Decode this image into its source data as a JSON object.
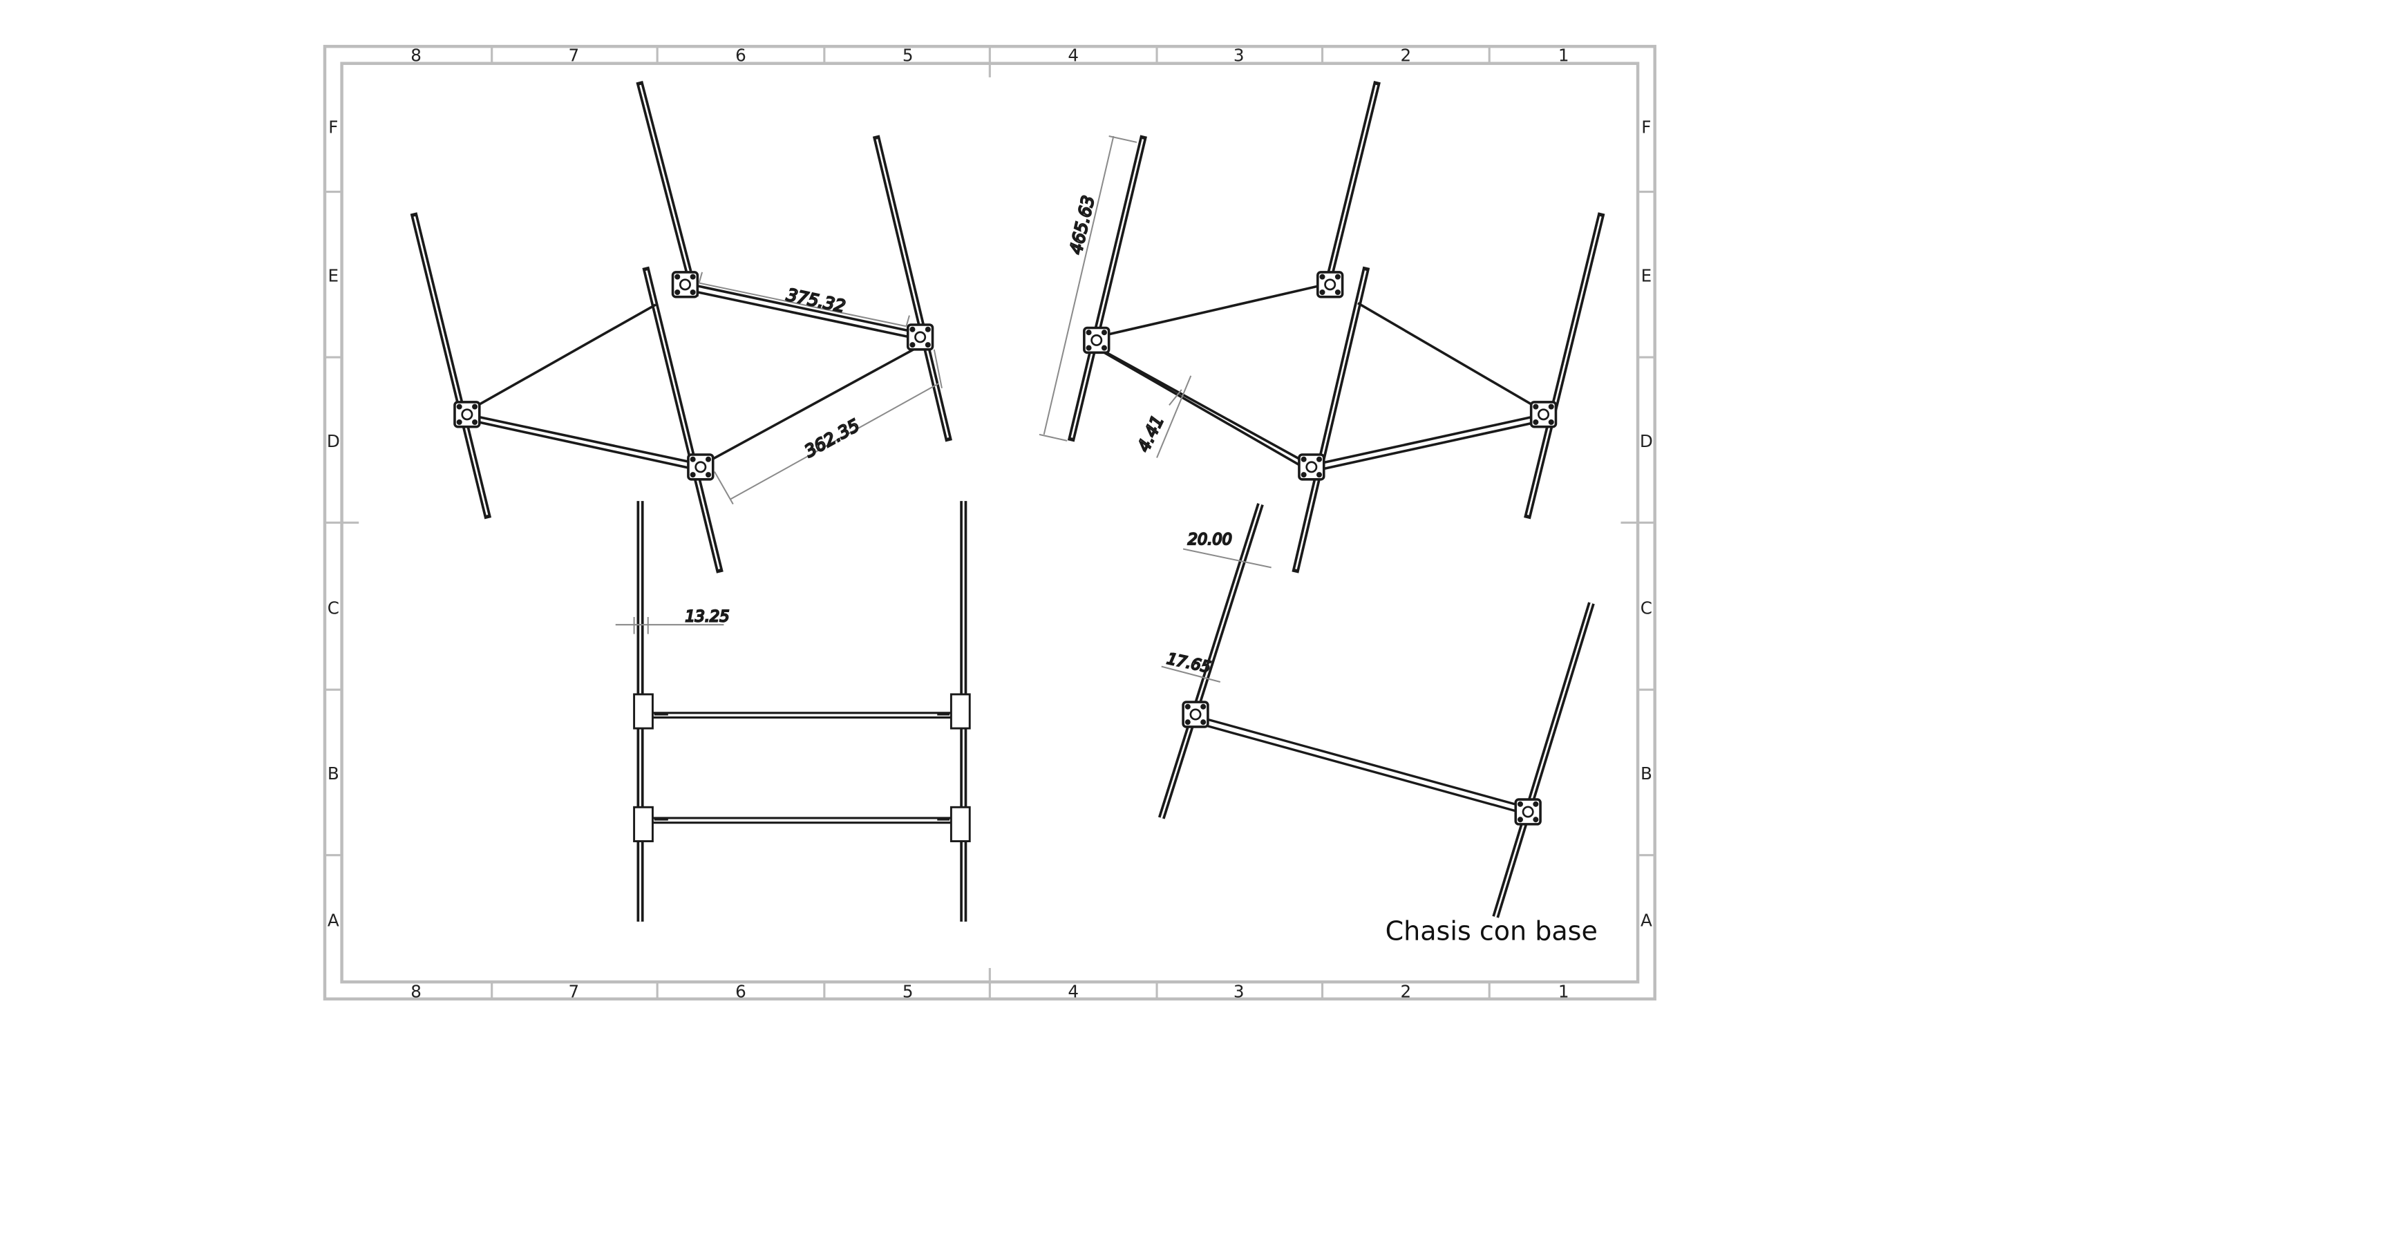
{
  "sheet": {
    "title": "Chasis con base",
    "colors": {
      "frame": "#bdbdbd",
      "part": "#1a1a1a",
      "dimension": "#8a8a8a"
    }
  },
  "zones": {
    "columns": [
      "8",
      "7",
      "6",
      "5",
      "4",
      "3",
      "2",
      "1"
    ],
    "rows": [
      "F",
      "E",
      "D",
      "C",
      "B",
      "A"
    ]
  },
  "dimensions": {
    "d_375": "375.32",
    "d_362": "362.35",
    "d_465": "465.63",
    "d_441": "4.41",
    "d_1325": "13.25",
    "d_2000": "20.00",
    "d_1765": "17.65"
  }
}
